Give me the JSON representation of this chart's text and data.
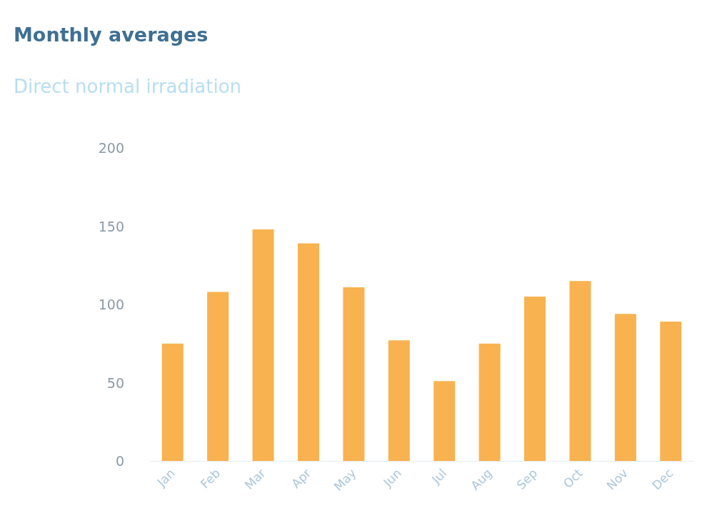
{
  "chart_data": {
    "type": "bar",
    "title": "Monthly averages",
    "subtitle": "Direct normal irradiation",
    "categories": [
      "Jan",
      "Feb",
      "Mar",
      "Apr",
      "May",
      "Jun",
      "Jul",
      "Aug",
      "Sep",
      "Oct",
      "Nov",
      "Dec"
    ],
    "values": [
      75,
      108,
      148,
      139,
      111,
      77,
      51,
      75,
      105,
      115,
      94,
      89
    ],
    "color": "#f8b24f",
    "ylim": [
      0,
      200
    ],
    "yticks": [
      0,
      50,
      100,
      150,
      200
    ]
  }
}
